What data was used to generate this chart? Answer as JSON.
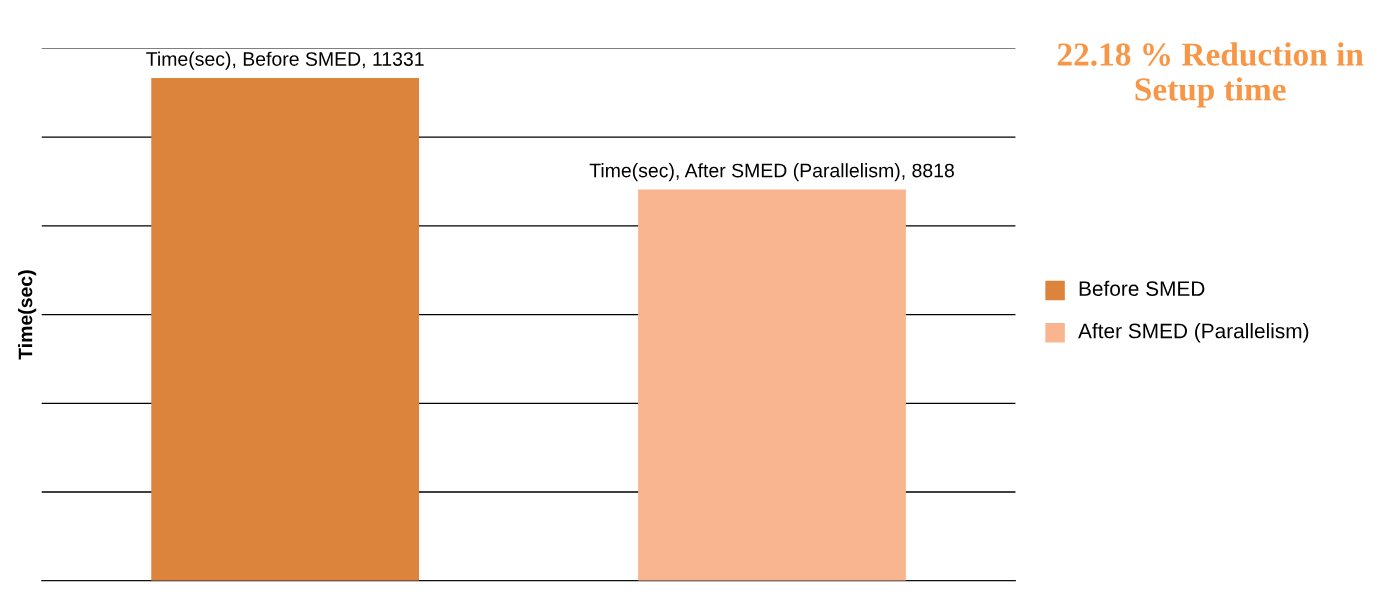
{
  "chart_data": {
    "type": "bar",
    "ylabel": "Time(sec)",
    "categories": [
      null,
      null
    ],
    "series": [
      {
        "colors": [
          "#dd843c",
          "#f8b58f"
        ],
        "values": [
          11331,
          8818
        ],
        "value_labels": [
          "Time(sec), Before SMED, 11331",
          "Time(sec), After SMED (Parallelism), 8818"
        ]
      }
    ],
    "ylim": [
      0,
      12000
    ],
    "yticks": [
      {
        "value": 0,
        "label": null
      },
      {
        "value": 2000,
        "label": null
      },
      {
        "value": 4000,
        "label": null
      },
      {
        "value": 6000,
        "label": null
      },
      {
        "value": 8000,
        "label": null
      },
      {
        "value": 10000,
        "label": null
      },
      {
        "value": 12000,
        "label": null
      }
    ],
    "tick_labels": false,
    "grid": "y",
    "annotations": [
      "22.18 % Reduction in Setup time",
      "Before SMED",
      "After SMED (Parallelism)"
    ]
  }
}
